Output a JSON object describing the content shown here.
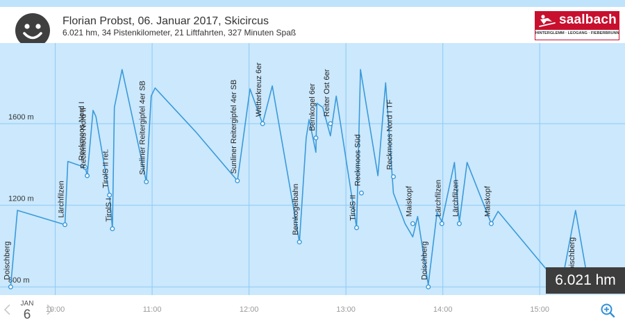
{
  "header": {
    "title": "Florian Probst, 06. Januar 2017, Skicircus",
    "subtitle": "6.021 hm, 34 Pistenkilometer, 21 Liftfahrten, 327 Minuten Spaß",
    "avatar_icon": "smiley-face-icon"
  },
  "logo": {
    "word": "saalbach",
    "subline": "HINTERGLEMM · LEOGANG · FIEBERBRUNN",
    "color": "#c8102e"
  },
  "summary": {
    "height_meters": "6.021 hm"
  },
  "date_nav": {
    "month": "JAN",
    "day": "6",
    "prev_icon": "chevron-left-icon",
    "next_icon": "chevron-right-icon"
  },
  "zoom_icon": "zoom-in-icon",
  "colors": {
    "line": "#3a9ad9",
    "plot_bg": "#cbe8fd",
    "grid": "#8ecaf3",
    "box": "#3d3d3d"
  },
  "chart_data": {
    "type": "line",
    "title": "",
    "xlabel": "",
    "ylabel": "",
    "x_unit": "hours",
    "xlim": [
      9.43,
      15.88
    ],
    "ylim": [
      760,
      1995
    ],
    "y_ticks": [
      {
        "value": 800,
        "label": "800 m"
      },
      {
        "value": 1200,
        "label": "1200 m"
      },
      {
        "value": 1600,
        "label": "1600 m"
      }
    ],
    "x_ticks": [
      {
        "value": 10,
        "label": "10:00"
      },
      {
        "value": 11,
        "label": "11:00"
      },
      {
        "value": 12,
        "label": "12:00"
      },
      {
        "value": 13,
        "label": "13:00"
      },
      {
        "value": 14,
        "label": "14:00"
      },
      {
        "value": 15,
        "label": "15:00"
      }
    ],
    "grid": true,
    "series": [
      {
        "points": [
          [
            9.54,
            800
          ],
          [
            9.61,
            1175
          ],
          [
            10.1,
            1105
          ],
          [
            10.13,
            1415
          ],
          [
            10.31,
            1385
          ],
          [
            10.33,
            1345
          ],
          [
            10.39,
            1665
          ],
          [
            10.42,
            1635
          ],
          [
            10.56,
            1250
          ],
          [
            10.59,
            1085
          ],
          [
            10.61,
            1680
          ],
          [
            10.69,
            1865
          ],
          [
            10.94,
            1315
          ],
          [
            10.99,
            1735
          ],
          [
            11.03,
            1775
          ],
          [
            11.45,
            1560
          ],
          [
            11.88,
            1320
          ],
          [
            12.01,
            1770
          ],
          [
            12.14,
            1600
          ],
          [
            12.24,
            1785
          ],
          [
            12.52,
            1020
          ],
          [
            12.59,
            1530
          ],
          [
            12.62,
            1620
          ],
          [
            12.69,
            1460
          ],
          [
            12.7,
            1700
          ],
          [
            12.76,
            1680
          ],
          [
            12.84,
            1540
          ],
          [
            12.9,
            1735
          ],
          [
            13.11,
            1090
          ],
          [
            13.15,
            1865
          ],
          [
            13.33,
            1345
          ],
          [
            13.41,
            1800
          ],
          [
            13.49,
            1260
          ],
          [
            13.61,
            1110
          ],
          [
            13.69,
            1045
          ],
          [
            13.74,
            1145
          ],
          [
            13.85,
            810
          ],
          [
            13.94,
            1165
          ],
          [
            13.99,
            1120
          ],
          [
            14.12,
            1410
          ],
          [
            14.17,
            1115
          ],
          [
            14.25,
            1410
          ],
          [
            14.5,
            1110
          ],
          [
            14.57,
            1170
          ],
          [
            15.22,
            800
          ],
          [
            15.37,
            1175
          ],
          [
            15.5,
            820
          ]
        ]
      }
    ],
    "annotations": [
      {
        "label": "Doischberg",
        "x": 9.54,
        "y": 800
      },
      {
        "label": "Lärchfilzen",
        "x": 10.1,
        "y": 1105
      },
      {
        "label": "Reckmoos Nord I",
        "x": 10.31,
        "y": 1385
      },
      {
        "label": "Reckmoos Nord II",
        "x": 10.33,
        "y": 1345
      },
      {
        "label": "TirolS II ret.",
        "x": 10.56,
        "y": 1250
      },
      {
        "label": "TirolS I",
        "x": 10.59,
        "y": 1085
      },
      {
        "label": "Sunliner Reitergipfel 4er SB",
        "x": 10.94,
        "y": 1315
      },
      {
        "label": "Sunliner Reitergipfel 4er SB",
        "x": 11.88,
        "y": 1320
      },
      {
        "label": "Wetterkreuz 6er",
        "x": 12.14,
        "y": 1600
      },
      {
        "label": "Bernkogelbahn",
        "x": 12.52,
        "y": 1020
      },
      {
        "label": "Bernkogel 6er",
        "x": 12.69,
        "y": 1530
      },
      {
        "label": "Reiter Ost 6er",
        "x": 12.84,
        "y": 1600
      },
      {
        "label": "TirolS II",
        "x": 13.11,
        "y": 1090
      },
      {
        "label": "Reckmoos Süd",
        "x": 13.16,
        "y": 1260
      },
      {
        "label": "Reckmoos Nord I TF",
        "x": 13.49,
        "y": 1340
      },
      {
        "label": "Maiskopf",
        "x": 13.69,
        "y": 1110
      },
      {
        "label": "Doischberg",
        "x": 13.85,
        "y": 800
      },
      {
        "label": "Lärchfilzen",
        "x": 13.99,
        "y": 1110
      },
      {
        "label": "Lärchfilzen",
        "x": 14.17,
        "y": 1110
      },
      {
        "label": "Maiskopf",
        "x": 14.5,
        "y": 1110
      },
      {
        "label": "Doischberg",
        "x": 15.37,
        "y": 820
      }
    ]
  }
}
